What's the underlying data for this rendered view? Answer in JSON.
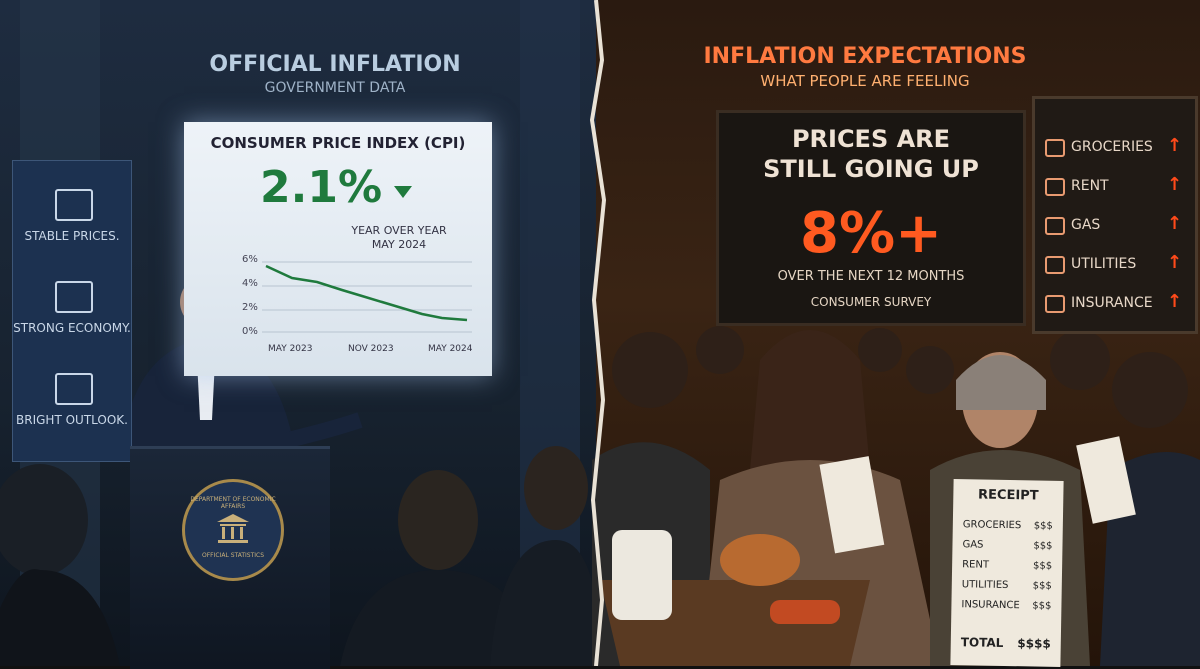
{
  "left": {
    "title": "OFFICIAL INFLATION",
    "subtitle": "GOVERNMENT DATA",
    "screen": {
      "heading": "CONSUMER PRICE INDEX (CPI)",
      "value": "2.1%",
      "caption": "YEAR OVER YEAR",
      "date": "MAY 2024",
      "y_labels": [
        "6%",
        "4%",
        "2%",
        "0%"
      ],
      "x_labels": [
        "MAY 2023",
        "NOV 2023",
        "MAY 2024"
      ]
    },
    "banner": [
      "STABLE PRICES.",
      "STRONG ECONOMY.",
      "BRIGHT OUTLOOK."
    ],
    "seal": {
      "top": "DEPARTMENT OF ECONOMIC AFFAIRS",
      "bottom": "OFFICIAL STATISTICS"
    }
  },
  "right": {
    "title": "INFLATION EXPECTATIONS",
    "subtitle": "WHAT PEOPLE ARE FEELING",
    "board": {
      "line1": "PRICES ARE",
      "line2": "STILL GOING UP",
      "value": "8%+",
      "caption": "OVER THE NEXT 12 MONTHS",
      "source": "CONSUMER SURVEY"
    },
    "list": [
      "GROCERIES",
      "RENT",
      "GAS",
      "UTILITIES",
      "INSURANCE"
    ],
    "receipt": {
      "title": "RECEIPT",
      "rows": [
        [
          "GROCERIES",
          "$$$"
        ],
        [
          "GAS",
          "$$$"
        ],
        [
          "RENT",
          "$$$"
        ],
        [
          "UTILITIES",
          "$$$"
        ],
        [
          "INSURANCE",
          "$$$"
        ]
      ],
      "total": [
        "TOTAL",
        "$$$$"
      ]
    }
  }
}
